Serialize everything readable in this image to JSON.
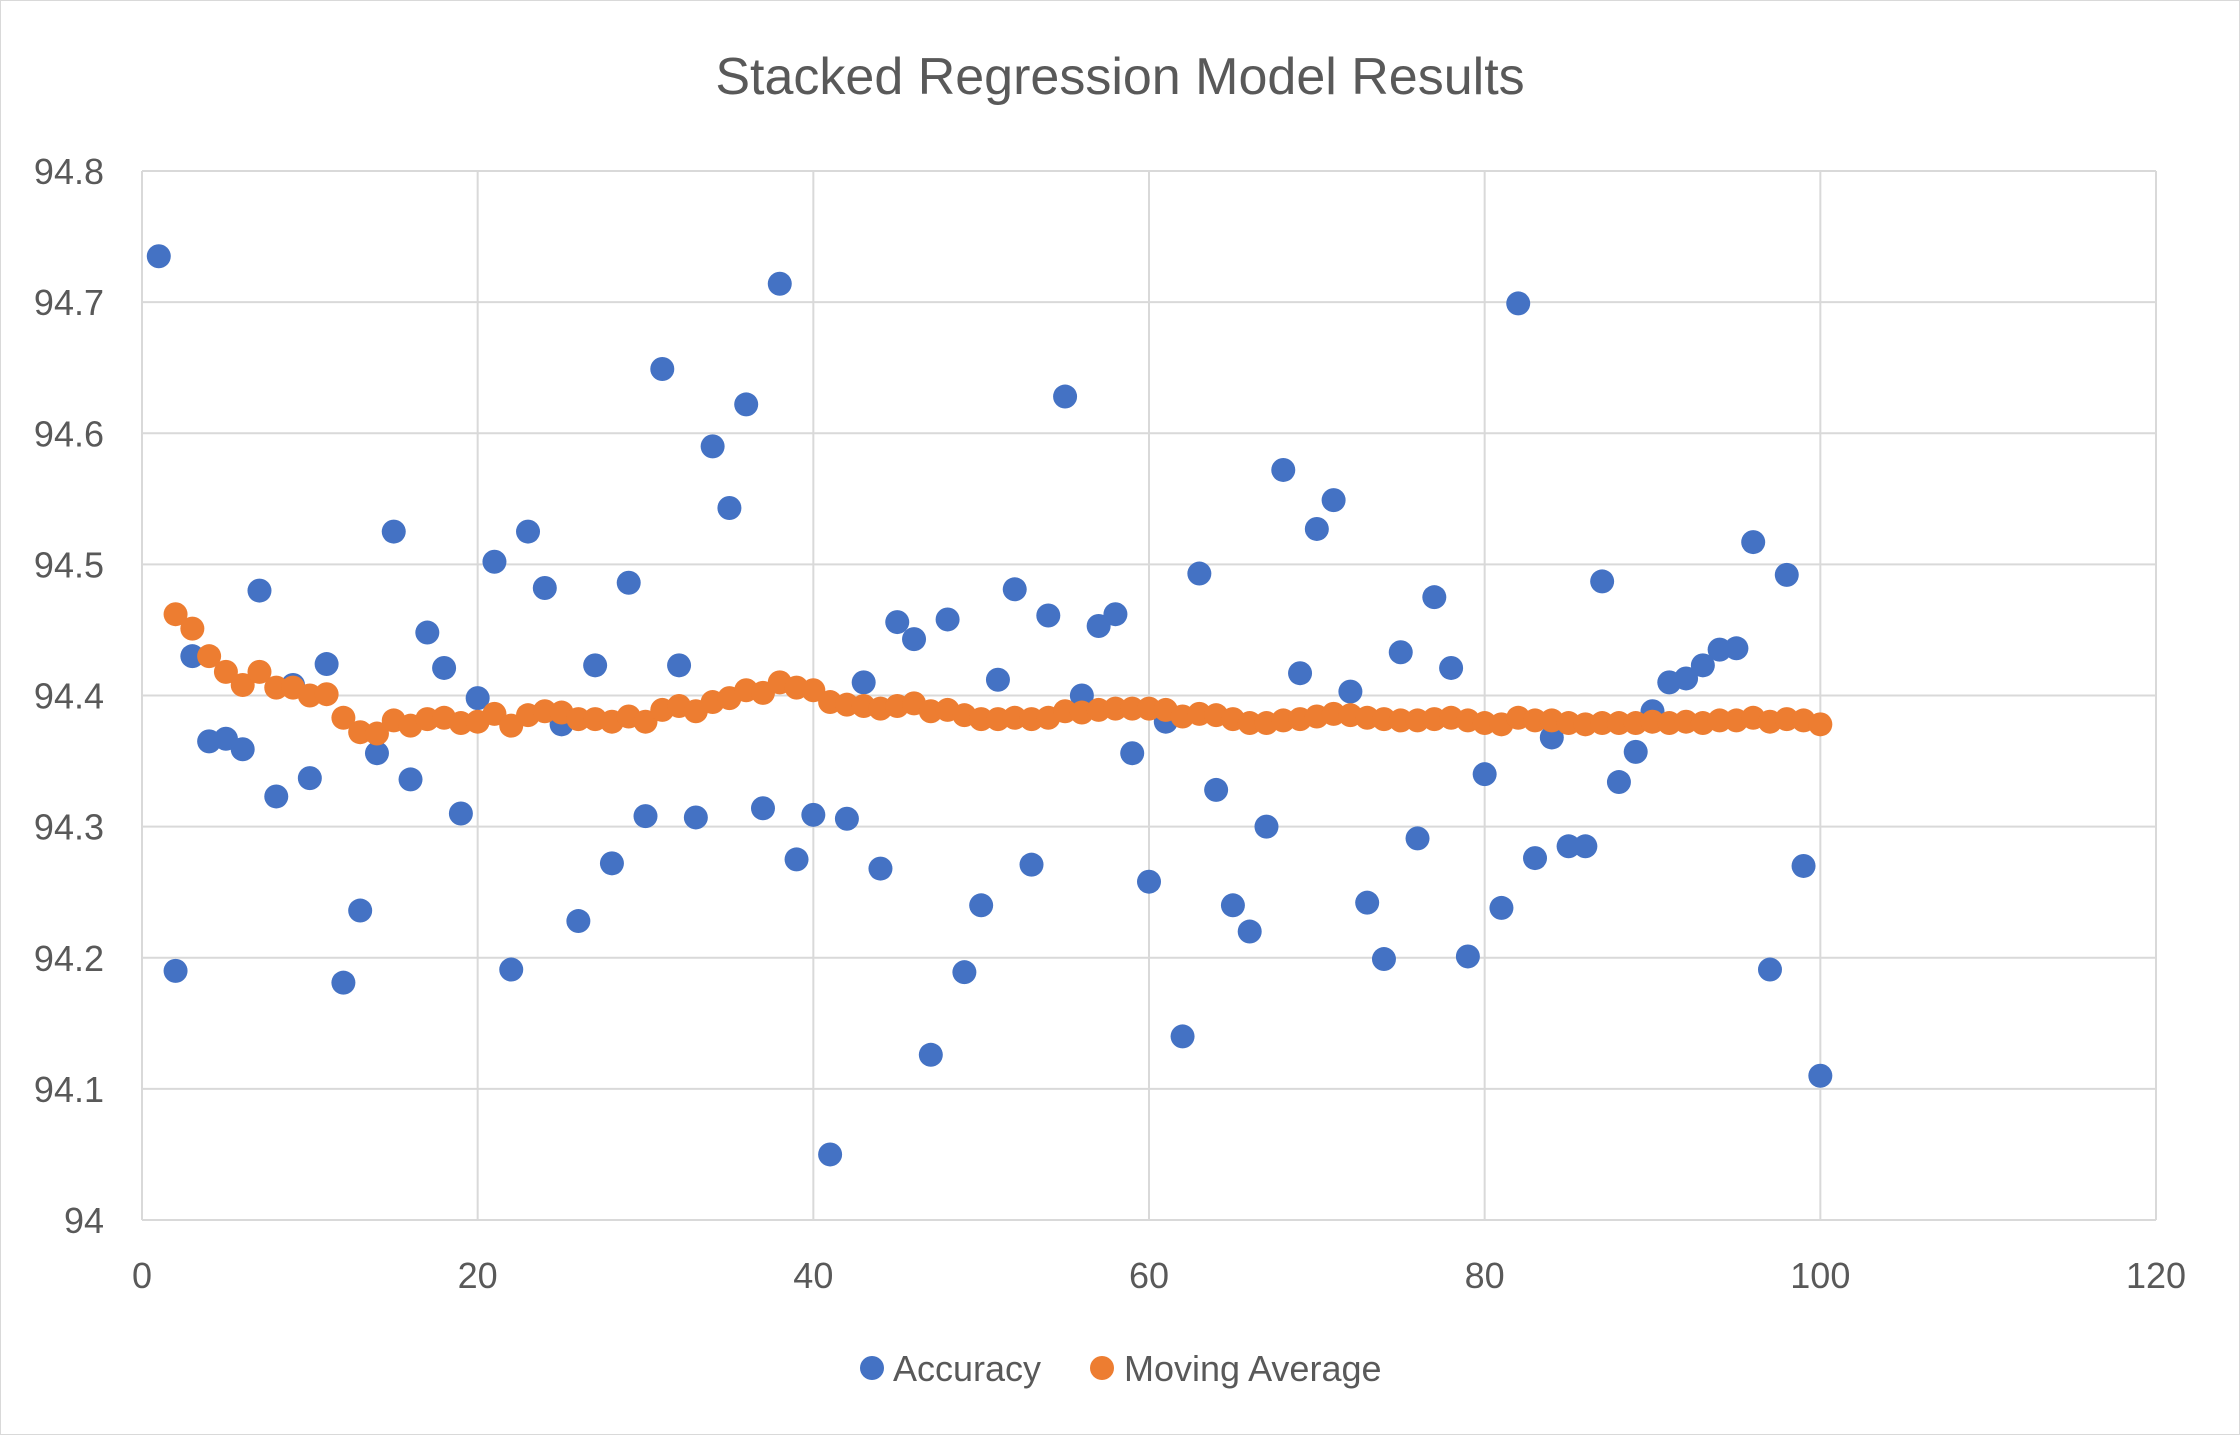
{
  "chart_data": {
    "type": "scatter",
    "title": "Stacked Regression Model Results",
    "xlabel": "",
    "ylabel": "",
    "xlim": [
      0,
      120
    ],
    "ylim": [
      94,
      94.8
    ],
    "x_ticks": [
      0,
      20,
      40,
      60,
      80,
      100,
      120
    ],
    "y_ticks": [
      94,
      94.1,
      94.2,
      94.3,
      94.4,
      94.5,
      94.6,
      94.7,
      94.8
    ],
    "y_tick_labels": [
      "94",
      "94.1",
      "94.2",
      "94.3",
      "94.4",
      "94.5",
      "94.6",
      "94.7",
      "94.8"
    ],
    "grid": true,
    "legend_position": "bottom",
    "series": [
      {
        "name": "Accuracy",
        "color": "#4472C4",
        "x": [
          1,
          2,
          3,
          4,
          5,
          6,
          7,
          8,
          9,
          10,
          11,
          12,
          13,
          14,
          15,
          16,
          17,
          18,
          19,
          20,
          21,
          22,
          23,
          24,
          25,
          26,
          27,
          28,
          29,
          30,
          31,
          32,
          33,
          34,
          35,
          36,
          37,
          38,
          39,
          40,
          41,
          42,
          43,
          44,
          45,
          46,
          47,
          48,
          49,
          50,
          51,
          52,
          53,
          54,
          55,
          56,
          57,
          58,
          59,
          60,
          61,
          62,
          63,
          64,
          65,
          66,
          67,
          68,
          69,
          70,
          71,
          72,
          73,
          74,
          75,
          76,
          77,
          78,
          79,
          80,
          81,
          82,
          83,
          84,
          85,
          86,
          87,
          88,
          89,
          90,
          91,
          92,
          93,
          94,
          95,
          96,
          97,
          98,
          99,
          100
        ],
        "y": [
          94.735,
          94.19,
          94.43,
          94.365,
          94.367,
          94.359,
          94.48,
          94.323,
          94.408,
          94.337,
          94.424,
          94.181,
          94.236,
          94.356,
          94.525,
          94.336,
          94.448,
          94.421,
          94.31,
          94.398,
          94.502,
          94.191,
          94.525,
          94.482,
          94.378,
          94.228,
          94.423,
          94.272,
          94.486,
          94.308,
          94.649,
          94.423,
          94.307,
          94.59,
          94.543,
          94.622,
          94.314,
          94.714,
          94.275,
          94.309,
          94.05,
          94.306,
          94.41,
          94.268,
          94.456,
          94.443,
          94.126,
          94.458,
          94.189,
          94.24,
          94.412,
          94.481,
          94.271,
          94.461,
          94.628,
          94.4,
          94.453,
          94.462,
          94.356,
          94.258,
          94.38,
          94.14,
          94.493,
          94.328,
          94.24,
          94.22,
          94.3,
          94.572,
          94.417,
          94.527,
          94.549,
          94.403,
          94.242,
          94.199,
          94.433,
          94.291,
          94.475,
          94.421,
          94.201,
          94.34,
          94.238,
          94.699,
          94.276,
          94.368,
          94.285,
          94.285,
          94.487,
          94.334,
          94.357,
          94.388,
          94.41,
          94.413,
          94.423,
          94.435,
          94.436,
          94.517,
          94.191,
          94.492,
          94.27,
          94.11
        ]
      },
      {
        "name": "Moving Average",
        "color": "#ED7D31",
        "x": [
          2,
          3,
          4,
          5,
          6,
          7,
          8,
          9,
          10,
          11,
          12,
          13,
          14,
          15,
          16,
          17,
          18,
          19,
          20,
          21,
          22,
          23,
          24,
          25,
          26,
          27,
          28,
          29,
          30,
          31,
          32,
          33,
          34,
          35,
          36,
          37,
          38,
          39,
          40,
          41,
          42,
          43,
          44,
          45,
          46,
          47,
          48,
          49,
          50,
          51,
          52,
          53,
          54,
          55,
          56,
          57,
          58,
          59,
          60,
          61,
          62,
          63,
          64,
          65,
          66,
          67,
          68,
          69,
          70,
          71,
          72,
          73,
          74,
          75,
          76,
          77,
          78,
          79,
          80,
          81,
          82,
          83,
          84,
          85,
          86,
          87,
          88,
          89,
          90,
          91,
          92,
          93,
          94,
          95,
          96,
          97,
          98,
          99,
          100
        ],
        "y": [
          94.462,
          94.451,
          94.43,
          94.418,
          94.408,
          94.418,
          94.406,
          94.406,
          94.4,
          94.401,
          94.383,
          94.372,
          94.371,
          94.381,
          94.377,
          94.382,
          94.383,
          94.379,
          94.38,
          94.386,
          94.377,
          94.385,
          94.388,
          94.387,
          94.382,
          94.382,
          94.38,
          94.384,
          94.38,
          94.389,
          94.392,
          94.388,
          94.395,
          94.398,
          94.404,
          94.402,
          94.41,
          94.406,
          94.404,
          94.395,
          94.393,
          94.392,
          94.39,
          94.392,
          94.394,
          94.388,
          94.389,
          94.385,
          94.382,
          94.382,
          94.383,
          94.382,
          94.383,
          94.388,
          94.387,
          94.389,
          94.39,
          94.39,
          94.39,
          94.389,
          94.384,
          94.386,
          94.385,
          94.382,
          94.379,
          94.379,
          94.381,
          94.382,
          94.384,
          94.386,
          94.385,
          94.383,
          94.382,
          94.381,
          94.381,
          94.382,
          94.383,
          94.381,
          94.379,
          94.378,
          94.383,
          94.381,
          94.381,
          94.379,
          94.378,
          94.379,
          94.379,
          94.379,
          94.38,
          94.379,
          94.38,
          94.379,
          94.381,
          94.381,
          94.383,
          94.38,
          94.382,
          94.381,
          94.378
        ]
      }
    ]
  }
}
